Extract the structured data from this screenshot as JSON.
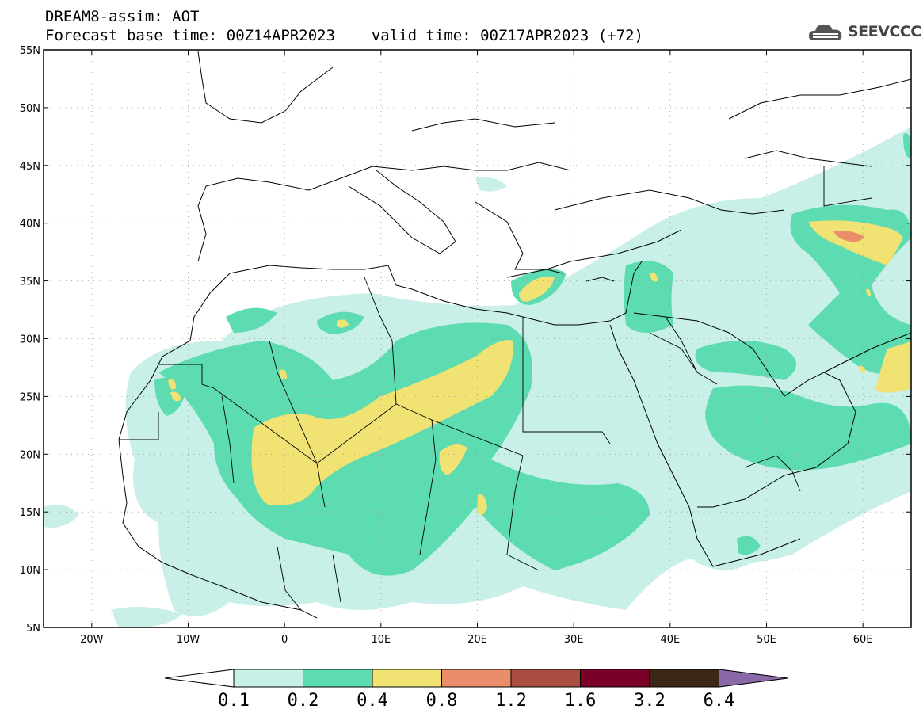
{
  "header": {
    "title_line1": "DREAM8-assim: AOT",
    "base_time_label": "Forecast base time: 00Z14APR2023",
    "valid_time_label": "valid time: 00Z17APR2023 (+72)",
    "logo_text": "SEEVCCC"
  },
  "map": {
    "lon_range": [
      -25,
      65
    ],
    "lat_range": [
      5,
      55
    ],
    "grid": "dotted",
    "lat_ticks": [
      {
        "value": 55,
        "label": "55N"
      },
      {
        "value": 50,
        "label": "50N"
      },
      {
        "value": 45,
        "label": "45N"
      },
      {
        "value": 40,
        "label": "40N"
      },
      {
        "value": 35,
        "label": "35N"
      },
      {
        "value": 30,
        "label": "30N"
      },
      {
        "value": 25,
        "label": "25N"
      },
      {
        "value": 20,
        "label": "20N"
      },
      {
        "value": 15,
        "label": "15N"
      },
      {
        "value": 10,
        "label": "10N"
      },
      {
        "value": 5,
        "label": "5N"
      }
    ],
    "lon_ticks": [
      {
        "value": -20,
        "label": "20W"
      },
      {
        "value": -10,
        "label": "10W"
      },
      {
        "value": 0,
        "label": "0"
      },
      {
        "value": 10,
        "label": "10E"
      },
      {
        "value": 20,
        "label": "20E"
      },
      {
        "value": 30,
        "label": "30E"
      },
      {
        "value": 40,
        "label": "40E"
      },
      {
        "value": 50,
        "label": "50E"
      },
      {
        "value": 60,
        "label": "60E"
      }
    ]
  },
  "colorbar": {
    "colors": [
      "#ffffff",
      "#c8efe8",
      "#5cdcb0",
      "#f0e273",
      "#e98d6a",
      "#ac4d42",
      "#7a0028",
      "#3b2718",
      "#8b68a8"
    ],
    "labels": [
      "0.1",
      "0.2",
      "0.4",
      "0.8",
      "1.2",
      "1.6",
      "3.2",
      "6.4"
    ]
  }
}
